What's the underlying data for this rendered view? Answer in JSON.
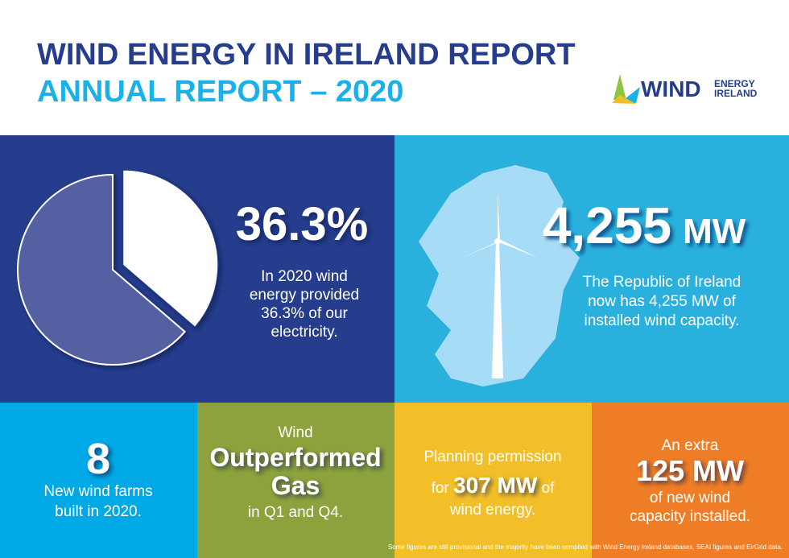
{
  "header": {
    "title": "WIND ENERGY IN IRELAND REPORT",
    "subtitle": "ANNUAL REPORT – 2020",
    "logo": {
      "word": "WIND",
      "line1": "ENERGY",
      "line2": "IRELAND"
    }
  },
  "share_panel": {
    "value": 36.3,
    "label": "36.3%",
    "text": [
      "In 2020 wind",
      "energy provided",
      "36.3% of our",
      "electricity."
    ]
  },
  "capacity_panel": {
    "number": "4,255",
    "unit": "MW",
    "text": [
      "The Republic of Ireland",
      "now has 4,255 MW of",
      "installed wind capacity."
    ]
  },
  "tiles": [
    {
      "big": "8",
      "text": [
        "New wind farms",
        "built in 2020."
      ]
    },
    {
      "top": "Wind",
      "big": [
        "Outperformed",
        "Gas"
      ],
      "bottom": "in Q1 and Q4."
    },
    {
      "top": "Planning permission",
      "before": "for",
      "big": "307 MW",
      "after": "of",
      "bottom": "wind energy."
    },
    {
      "top": "An extra",
      "big": "125 MW",
      "text": [
        "of new wind",
        "capacity installed."
      ]
    }
  ],
  "footnote": "Some figures are still provisional and the majority have been compiled with Wind Energy Ireland databases, SEAI figures and EirGrid data."
}
